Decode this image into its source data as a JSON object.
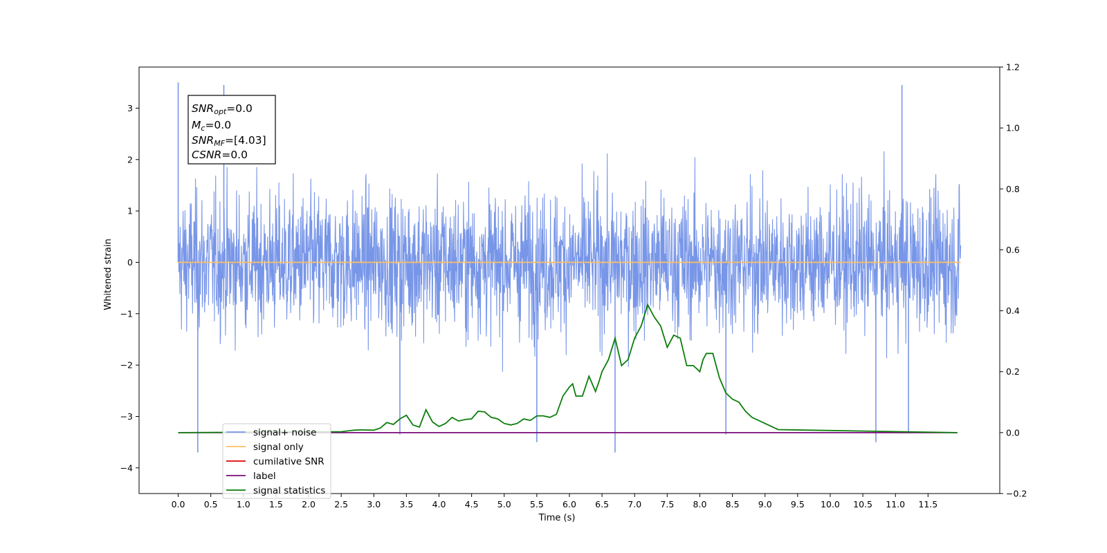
{
  "chart_data": {
    "type": "line",
    "xlabel": "Time (s)",
    "ylabel": "Whitened strain",
    "xlim": [
      -0.6,
      12.6
    ],
    "ylim": [
      -4.5,
      3.8
    ],
    "y2lim": [
      -0.2,
      1.2
    ],
    "x_ticks": [
      "0.0",
      "0.5",
      "1.0",
      "1.5",
      "2.0",
      "2.5",
      "3.0",
      "3.5",
      "4.0",
      "4.5",
      "5.0",
      "5.5",
      "6.0",
      "6.5",
      "7.0",
      "7.5",
      "8.0",
      "8.5",
      "9.0",
      "9.5",
      "10.0",
      "10.5",
      "11.0",
      "11.5"
    ],
    "y_ticks": [
      "3",
      "2",
      "1",
      "0",
      "−1",
      "−2",
      "−3",
      "−4"
    ],
    "y2_ticks": [
      "1.2",
      "1.0",
      "0.8",
      "0.6",
      "0.4",
      "0.2",
      "0.0",
      "−0.2"
    ],
    "grid": false,
    "legend_position": "lower-left",
    "info_box": {
      "lines": [
        {
          "sym": "SNR",
          "sub": "opt",
          "value": "=0.0"
        },
        {
          "sym": "M",
          "sub": "c",
          "value": "=0.0"
        },
        {
          "sym": "SNR",
          "sub": "MF",
          "value": "=[4.03]"
        },
        {
          "sym": "CSNR",
          "sub": "",
          "value": "=0.0"
        }
      ]
    },
    "series": [
      {
        "name": "signal+ noise",
        "color": "#7896e8",
        "axis": "left",
        "kind": "noise",
        "x_range": [
          0.0,
          12.0
        ],
        "envelope": [
          -2.4,
          2.5
        ],
        "spikes": [
          [
            0.0,
            3.5
          ],
          [
            0.3,
            -3.7
          ],
          [
            0.7,
            3.45
          ],
          [
            3.4,
            -3.35
          ],
          [
            5.5,
            -3.5
          ],
          [
            6.7,
            -3.7
          ],
          [
            8.4,
            -3.35
          ],
          [
            10.7,
            -3.5
          ],
          [
            11.1,
            3.45
          ],
          [
            11.2,
            -3.3
          ]
        ]
      },
      {
        "name": "signal only",
        "color": "#ffbf5f",
        "axis": "left",
        "x": [
          0.0,
          12.0
        ],
        "values": [
          0.0,
          0.0
        ]
      },
      {
        "name": "cumilative SNR",
        "color": "#e00000",
        "axis": "left",
        "x": [],
        "values": []
      },
      {
        "name": "label",
        "color": "#7a0a7a",
        "axis": "right",
        "x": [
          0.0,
          11.95
        ],
        "values": [
          0.0,
          0.0
        ]
      },
      {
        "name": "signal statistics",
        "color": "#0a7d0a",
        "axis": "right",
        "x": [
          0.0,
          2.5,
          2.7,
          2.8,
          3.0,
          3.1,
          3.2,
          3.3,
          3.4,
          3.5,
          3.6,
          3.7,
          3.8,
          3.9,
          4.0,
          4.1,
          4.2,
          4.3,
          4.4,
          4.5,
          4.6,
          4.7,
          4.8,
          4.9,
          5.0,
          5.1,
          5.2,
          5.3,
          5.4,
          5.5,
          5.6,
          5.7,
          5.8,
          5.9,
          6.0,
          6.05,
          6.1,
          6.2,
          6.3,
          6.4,
          6.45,
          6.5,
          6.55,
          6.6,
          6.7,
          6.8,
          6.9,
          7.0,
          7.1,
          7.2,
          7.3,
          7.4,
          7.5,
          7.6,
          7.7,
          7.8,
          7.9,
          8.0,
          8.05,
          8.1,
          8.2,
          8.3,
          8.4,
          8.5,
          8.6,
          8.7,
          8.8,
          9.0,
          9.2,
          11.95
        ],
        "values": [
          0.0,
          0.003,
          0.008,
          0.009,
          0.008,
          0.015,
          0.033,
          0.027,
          0.045,
          0.057,
          0.025,
          0.018,
          0.075,
          0.035,
          0.02,
          0.03,
          0.05,
          0.038,
          0.043,
          0.045,
          0.07,
          0.068,
          0.05,
          0.045,
          0.03,
          0.025,
          0.03,
          0.045,
          0.04,
          0.055,
          0.055,
          0.05,
          0.06,
          0.12,
          0.15,
          0.16,
          0.12,
          0.12,
          0.185,
          0.135,
          0.165,
          0.2,
          0.22,
          0.24,
          0.31,
          0.22,
          0.24,
          0.31,
          0.35,
          0.42,
          0.38,
          0.35,
          0.28,
          0.32,
          0.31,
          0.22,
          0.22,
          0.2,
          0.24,
          0.26,
          0.26,
          0.18,
          0.13,
          0.11,
          0.1,
          0.07,
          0.05,
          0.03,
          0.01,
          0.0
        ]
      }
    ]
  }
}
